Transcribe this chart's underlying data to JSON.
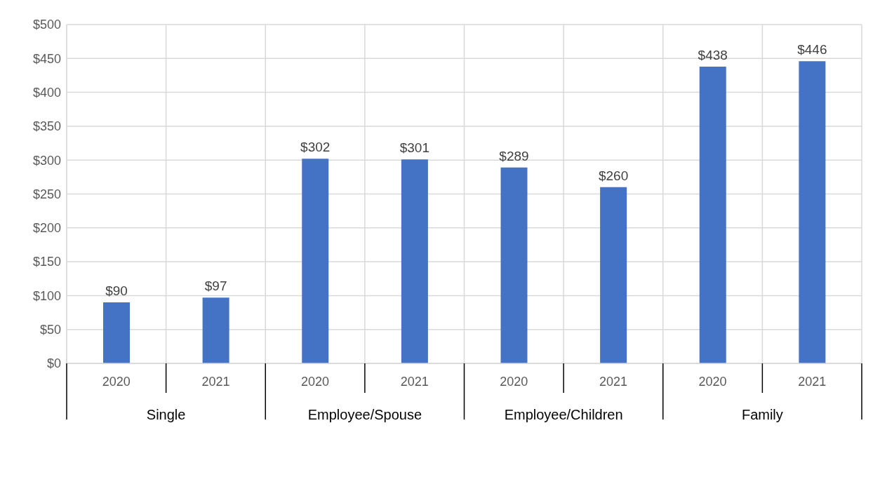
{
  "chart_data": {
    "type": "bar",
    "categories": [
      "2020",
      "2021",
      "2020",
      "2021",
      "2020",
      "2021",
      "2020",
      "2021"
    ],
    "values": [
      90,
      97,
      302,
      301,
      289,
      260,
      438,
      446
    ],
    "value_labels": [
      "$90",
      "$97",
      "$302",
      "$301",
      "$289",
      "$260",
      "$438",
      "$446"
    ],
    "color": "#4472c4",
    "annotations": [
      "Single",
      "Employee/Spouse",
      "Employee/Children",
      "Family"
    ],
    "ylim": [
      0,
      500
    ],
    "yticks": [
      {
        "value": 0,
        "label": "$0"
      },
      {
        "value": 50,
        "label": "$50"
      },
      {
        "value": 100,
        "label": "$100"
      },
      {
        "value": 150,
        "label": "$150"
      },
      {
        "value": 200,
        "label": "$200"
      },
      {
        "value": 250,
        "label": "$250"
      },
      {
        "value": 300,
        "label": "$300"
      },
      {
        "value": 350,
        "label": "$350"
      },
      {
        "value": 400,
        "label": "$400"
      },
      {
        "value": 450,
        "label": "$450"
      },
      {
        "value": 500,
        "label": "$500"
      }
    ],
    "grid": true
  }
}
